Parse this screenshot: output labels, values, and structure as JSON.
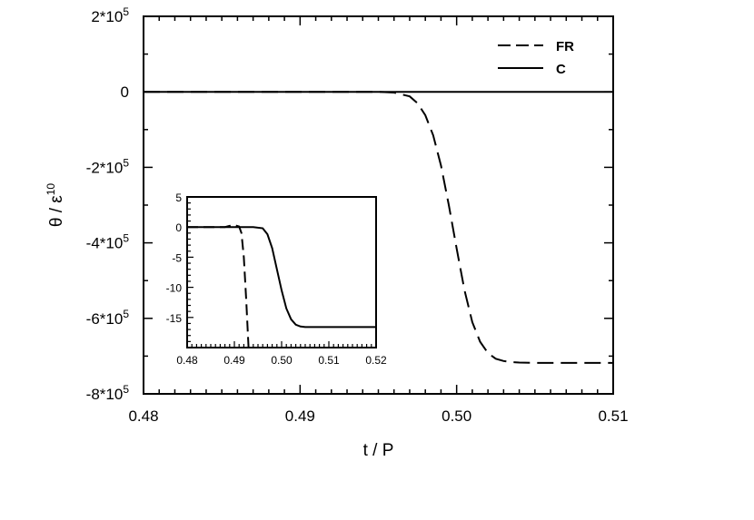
{
  "chart_data": [
    {
      "type": "line",
      "xlabel": "t / P",
      "ylabel_base": "θ / ε",
      "ylabel_sup": "10",
      "xlim": [
        0.48,
        0.51
      ],
      "ylim": [
        -800000,
        200000
      ],
      "x_ticks": [
        {
          "value": 0.48,
          "label": "0.48"
        },
        {
          "value": 0.49,
          "label": "0.49"
        },
        {
          "value": 0.5,
          "label": "0.50"
        },
        {
          "value": 0.51,
          "label": "0.51"
        }
      ],
      "y_ticks": [
        {
          "value": 200000,
          "base": "2*10",
          "exp": "5"
        },
        {
          "value": 0,
          "base": "0",
          "exp": ""
        },
        {
          "value": -200000,
          "base": "-2*10",
          "exp": "5"
        },
        {
          "value": -400000,
          "base": "-4*10",
          "exp": "5"
        },
        {
          "value": -600000,
          "base": "-6*10",
          "exp": "5"
        },
        {
          "value": -800000,
          "base": "-8*10",
          "exp": "5"
        }
      ],
      "legend_placement": "top-right",
      "grid": false,
      "series": [
        {
          "name": "FR",
          "style": "dashed",
          "x": [
            0.48,
            0.495,
            0.496,
            0.497,
            0.4975,
            0.498,
            0.4985,
            0.499,
            0.4995,
            0.5,
            0.5005,
            0.501,
            0.5015,
            0.502,
            0.5025,
            0.503,
            0.5035,
            0.504,
            0.505,
            0.51
          ],
          "y": [
            0,
            0,
            -2000,
            -12000,
            -30000,
            -62000,
            -115000,
            -195000,
            -300000,
            -415000,
            -525000,
            -610000,
            -662000,
            -692000,
            -707000,
            -713000,
            -716000,
            -717000,
            -718000,
            -718000
          ]
        },
        {
          "name": "C",
          "style": "solid",
          "x": [
            0.48,
            0.51
          ],
          "y": [
            0,
            0
          ]
        }
      ]
    },
    {
      "type": "line",
      "xlim": [
        0.48,
        0.52
      ],
      "ylim": [
        -20,
        5
      ],
      "x_ticks": [
        {
          "value": 0.48,
          "label": "0.48"
        },
        {
          "value": 0.49,
          "label": "0.49"
        },
        {
          "value": 0.5,
          "label": "0.50"
        },
        {
          "value": 0.51,
          "label": "0.51"
        },
        {
          "value": 0.52,
          "label": "0.52"
        }
      ],
      "y_ticks": [
        {
          "value": 5,
          "label": "5"
        },
        {
          "value": 0,
          "label": "0"
        },
        {
          "value": -5,
          "label": "-5"
        },
        {
          "value": -10,
          "label": "-10"
        },
        {
          "value": -15,
          "label": "-15"
        }
      ],
      "series": [
        {
          "name": "FR",
          "style": "dashed",
          "x": [
            0.48,
            0.488,
            0.489,
            0.49,
            0.491,
            0.4915,
            0.492,
            0.4925,
            0.493
          ],
          "y": [
            0,
            0,
            0.2,
            0.3,
            0.1,
            -1.0,
            -5.0,
            -12.0,
            -20.0
          ]
        },
        {
          "name": "C",
          "style": "solid",
          "x": [
            0.48,
            0.494,
            0.496,
            0.497,
            0.498,
            0.499,
            0.5,
            0.501,
            0.502,
            0.503,
            0.504,
            0.505,
            0.52
          ],
          "y": [
            0,
            0,
            -0.2,
            -1.2,
            -3.5,
            -7.0,
            -10.5,
            -13.5,
            -15.3,
            -16.2,
            -16.5,
            -16.6,
            -16.6
          ]
        }
      ]
    }
  ]
}
